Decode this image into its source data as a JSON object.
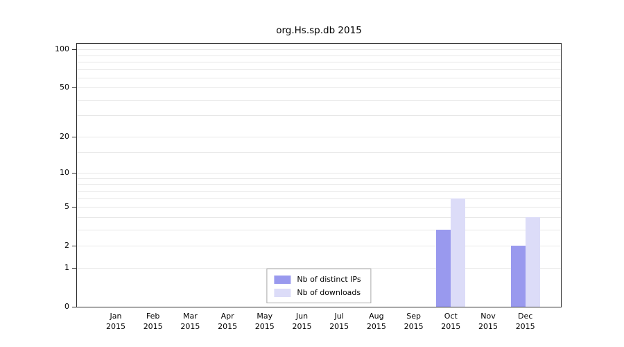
{
  "chart_data": {
    "type": "bar",
    "title": "org.Hs.sp.db 2015",
    "x_categories": [
      "Jan",
      "Feb",
      "Mar",
      "Apr",
      "May",
      "Jun",
      "Jul",
      "Aug",
      "Sep",
      "Oct",
      "Nov",
      "Dec"
    ],
    "x_year": "2015",
    "y_ticks": [
      100,
      50,
      20,
      10,
      5,
      2,
      1,
      0
    ],
    "y_gridlines": [
      1,
      2,
      3,
      4,
      5,
      6,
      7,
      8,
      9,
      10,
      15,
      20,
      30,
      40,
      50,
      60,
      70,
      80,
      90,
      100
    ],
    "y_scale": "log10(1+v)",
    "ylim": [
      0,
      100
    ],
    "grid": true,
    "legend_position": "bottom-center-inside",
    "series": [
      {
        "name": "Nb of distinct IPs",
        "color": "#9999ee",
        "values": [
          0,
          0,
          0,
          0,
          0,
          0,
          0,
          0,
          0,
          3,
          0,
          2
        ]
      },
      {
        "name": "Nb of downloads",
        "color": "#dcdcf8",
        "values": [
          0,
          0,
          0,
          0,
          0,
          0,
          0,
          0,
          0,
          6,
          0,
          4
        ]
      }
    ]
  }
}
